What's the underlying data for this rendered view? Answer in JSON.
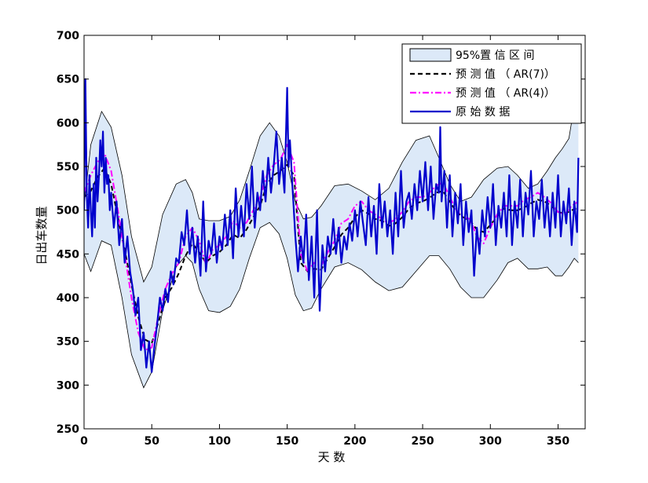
{
  "chart_data": {
    "type": "line",
    "title": "",
    "xlabel": "天 数",
    "ylabel": "日出车数量",
    "xlim": [
      0,
      370
    ],
    "ylim": [
      250,
      700
    ],
    "xticks": [
      0,
      50,
      100,
      150,
      200,
      250,
      300,
      350
    ],
    "yticks": [
      250,
      300,
      350,
      400,
      450,
      500,
      550,
      600,
      650,
      700
    ],
    "grid": false,
    "legend_position": "top-right",
    "legend": [
      {
        "label": "95%置 信 区 间",
        "style": "patch",
        "color": "#dce9f8",
        "edge": "#000000"
      },
      {
        "label": "预 测 值 （ AR(7)）",
        "style": "dashed",
        "color": "#000000"
      },
      {
        "label": "预 测 值 （ AR(4)）",
        "style": "dashdot",
        "color": "#ff00ff"
      },
      {
        "label": "原 始 数 据",
        "style": "solid",
        "color": "#0000cc"
      }
    ],
    "series": [
      {
        "kind": "band",
        "x": [
          0,
          5,
          13,
          20,
          28,
          35,
          44,
          50,
          58,
          68,
          75,
          80,
          85,
          92,
          100,
          108,
          115,
          122,
          130,
          137,
          144,
          150,
          156,
          162,
          168,
          175,
          185,
          195,
          205,
          215,
          225,
          235,
          245,
          255,
          262,
          270,
          278,
          286,
          295,
          305,
          313,
          320,
          328,
          335,
          342,
          348,
          353,
          358,
          362,
          365
        ],
        "upper": [
          505,
          575,
          613,
          595,
          540,
          470,
          418,
          435,
          495,
          530,
          535,
          520,
          490,
          488,
          488,
          493,
          512,
          545,
          585,
          600,
          585,
          555,
          510,
          490,
          492,
          505,
          528,
          530,
          522,
          512,
          525,
          555,
          580,
          585,
          560,
          530,
          510,
          515,
          535,
          548,
          550,
          540,
          525,
          530,
          545,
          560,
          570,
          582,
          620,
          650
        ],
        "lower": [
          450,
          430,
          465,
          460,
          400,
          335,
          297,
          315,
          385,
          435,
          448,
          440,
          410,
          385,
          383,
          390,
          410,
          445,
          480,
          486,
          473,
          445,
          403,
          385,
          388,
          410,
          435,
          440,
          432,
          418,
          408,
          412,
          430,
          448,
          448,
          433,
          412,
          400,
          400,
          420,
          440,
          445,
          433,
          433,
          435,
          425,
          425,
          435,
          445,
          440
        ]
      },
      {
        "name": "预 测 值 （ AR(7)）",
        "kind": "line",
        "style": "dashed",
        "color": "#000000",
        "x": [
          0,
          5,
          10,
          15,
          20,
          25,
          30,
          35,
          40,
          45,
          50,
          55,
          60,
          65,
          70,
          75,
          80,
          85,
          90,
          95,
          100,
          105,
          110,
          115,
          120,
          125,
          130,
          135,
          140,
          145,
          150,
          155,
          160,
          165,
          170,
          175,
          180,
          185,
          190,
          195,
          200,
          205,
          210,
          215,
          220,
          225,
          230,
          235,
          240,
          245,
          250,
          255,
          260,
          265,
          270,
          275,
          280,
          285,
          290,
          295,
          300,
          305,
          310,
          315,
          320,
          325,
          330,
          335,
          340,
          345,
          350,
          355,
          360,
          365
        ],
        "y": [
          515,
          522,
          538,
          548,
          530,
          492,
          455,
          415,
          378,
          352,
          348,
          372,
          400,
          412,
          428,
          448,
          462,
          452,
          440,
          448,
          452,
          460,
          472,
          468,
          478,
          492,
          505,
          530,
          540,
          545,
          552,
          540,
          440,
          430,
          433,
          432,
          445,
          458,
          472,
          480,
          492,
          500,
          496,
          490,
          488,
          482,
          485,
          492,
          502,
          508,
          510,
          514,
          520,
          522,
          510,
          498,
          492,
          488,
          478,
          475,
          483,
          493,
          502,
          500,
          500,
          503,
          508,
          512,
          510,
          505,
          498,
          496,
          500,
          503
        ]
      },
      {
        "name": "预 测 值 （ AR(4)）",
        "kind": "line",
        "style": "dashdot",
        "color": "#ff00ff",
        "x": [
          0,
          5,
          10,
          15,
          20,
          25,
          30,
          35,
          40,
          45,
          50,
          55,
          60,
          65,
          70,
          75,
          80,
          85,
          90,
          95,
          100,
          105,
          110,
          115,
          120,
          125,
          130,
          135,
          140,
          145,
          150,
          155,
          160,
          165,
          170,
          175,
          180,
          185,
          190,
          195,
          200,
          205,
          210,
          215,
          220,
          225,
          230,
          235,
          240,
          245,
          250,
          255,
          260,
          265,
          270,
          275,
          280,
          285,
          290,
          295,
          300,
          305,
          310,
          315,
          320,
          325,
          330,
          335,
          340,
          345,
          350,
          355,
          360,
          365
        ],
        "y": [
          520,
          540,
          555,
          565,
          545,
          500,
          450,
          400,
          360,
          340,
          343,
          380,
          410,
          428,
          440,
          470,
          480,
          465,
          438,
          455,
          460,
          470,
          488,
          480,
          486,
          500,
          515,
          540,
          552,
          558,
          575,
          555,
          450,
          430,
          440,
          436,
          452,
          465,
          485,
          490,
          505,
          510,
          500,
          495,
          490,
          485,
          490,
          498,
          510,
          515,
          515,
          520,
          528,
          532,
          515,
          500,
          492,
          490,
          470,
          462,
          480,
          495,
          505,
          505,
          505,
          512,
          515,
          520,
          515,
          508,
          498,
          495,
          505,
          510
        ]
      },
      {
        "name": "原 始 数 据",
        "kind": "line",
        "style": "solid",
        "color": "#0000cc",
        "x": [
          0,
          1,
          2,
          3,
          4,
          5,
          6,
          7,
          8,
          9,
          10,
          11,
          12,
          13,
          14,
          15,
          16,
          17,
          18,
          19,
          20,
          22,
          24,
          26,
          28,
          30,
          32,
          34,
          36,
          38,
          40,
          42,
          44,
          46,
          48,
          50,
          52,
          54,
          56,
          58,
          60,
          62,
          64,
          66,
          68,
          70,
          72,
          74,
          76,
          78,
          80,
          82,
          84,
          86,
          88,
          90,
          92,
          94,
          96,
          98,
          100,
          102,
          104,
          106,
          108,
          110,
          112,
          114,
          116,
          118,
          120,
          122,
          124,
          126,
          128,
          130,
          132,
          134,
          136,
          138,
          140,
          142,
          144,
          146,
          148,
          150,
          151,
          152,
          154,
          156,
          158,
          160,
          162,
          164,
          166,
          168,
          170,
          172,
          174,
          176,
          178,
          180,
          182,
          184,
          186,
          188,
          190,
          192,
          194,
          196,
          198,
          200,
          202,
          204,
          206,
          208,
          210,
          212,
          214,
          216,
          218,
          220,
          222,
          224,
          226,
          228,
          230,
          232,
          234,
          236,
          238,
          240,
          242,
          244,
          246,
          248,
          250,
          252,
          254,
          256,
          258,
          260,
          262,
          263,
          264,
          266,
          268,
          270,
          272,
          274,
          276,
          278,
          280,
          282,
          284,
          286,
          288,
          290,
          292,
          294,
          296,
          298,
          300,
          302,
          304,
          306,
          308,
          310,
          312,
          314,
          316,
          318,
          320,
          322,
          324,
          326,
          328,
          330,
          332,
          334,
          336,
          338,
          340,
          342,
          344,
          346,
          348,
          350,
          352,
          354,
          356,
          358,
          360,
          362,
          364,
          365
        ],
        "y": [
          500,
          650,
          520,
          480,
          540,
          500,
          470,
          530,
          480,
          560,
          510,
          540,
          580,
          550,
          590,
          520,
          560,
          530,
          540,
          500,
          520,
          480,
          510,
          460,
          490,
          440,
          470,
          430,
          410,
          380,
          400,
          340,
          360,
          320,
          350,
          315,
          345,
          370,
          400,
          385,
          410,
          395,
          430,
          415,
          445,
          440,
          475,
          460,
          500,
          450,
          480,
          440,
          470,
          425,
          510,
          430,
          465,
          450,
          485,
          440,
          470,
          455,
          495,
          460,
          500,
          445,
          525,
          470,
          505,
          470,
          530,
          490,
          550,
          480,
          520,
          500,
          545,
          510,
          560,
          520,
          550,
          590,
          530,
          560,
          520,
          640,
          550,
          580,
          525,
          470,
          430,
          470,
          440,
          495,
          420,
          470,
          400,
          500,
          385,
          460,
          430,
          470,
          450,
          490,
          450,
          480,
          440,
          470,
          455,
          485,
          465,
          500,
          470,
          510,
          485,
          460,
          515,
          470,
          505,
          450,
          530,
          480,
          510,
          470,
          500,
          450,
          520,
          470,
          545,
          480,
          510,
          520,
          490,
          530,
          500,
          545,
          510,
          555,
          500,
          550,
          490,
          530,
          520,
          595,
          510,
          545,
          480,
          540,
          470,
          520,
          485,
          530,
          460,
          510,
          475,
          500,
          425,
          480,
          450,
          500,
          470,
          515,
          480,
          530,
          460,
          505,
          480,
          520,
          470,
          540,
          460,
          510,
          480,
          535,
          470,
          520,
          495,
          545,
          470,
          510,
          490,
          535,
          480,
          515,
          470,
          520,
          480,
          540,
          470,
          510,
          485,
          525,
          460,
          510,
          475,
          560
        ]
      }
    ]
  }
}
